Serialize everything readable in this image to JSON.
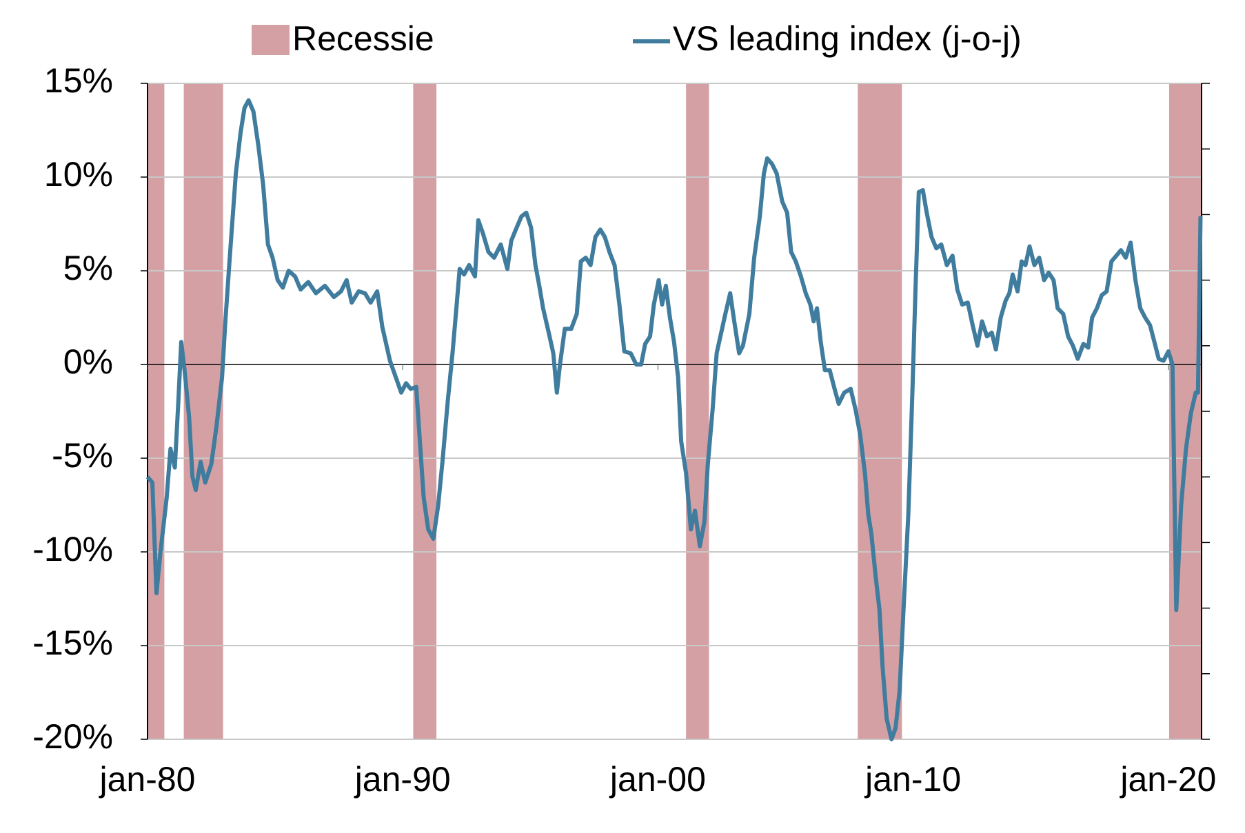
{
  "chart_data": {
    "type": "line",
    "bands": {
      "name": "Recessie",
      "color": "#d4a0a4",
      "ranges": [
        [
          1980.0,
          1980.66
        ],
        [
          1981.42,
          1982.96
        ],
        [
          1990.41,
          1991.32
        ],
        [
          2001.1,
          2002.0
        ],
        [
          2007.83,
          2009.56
        ],
        [
          2020.03,
          2021.3
        ]
      ]
    },
    "x": [
      1980.0,
      1980.19,
      1980.35,
      1980.5,
      1980.75,
      1980.9,
      1981.07,
      1981.2,
      1981.32,
      1981.45,
      1981.63,
      1981.76,
      1981.89,
      1982.08,
      1982.26,
      1982.5,
      1982.7,
      1982.92,
      1983.05,
      1983.2,
      1983.46,
      1983.65,
      1983.8,
      1983.96,
      1984.15,
      1984.34,
      1984.53,
      1984.72,
      1984.9,
      1985.1,
      1985.3,
      1985.53,
      1985.78,
      1986.0,
      1986.3,
      1986.6,
      1986.95,
      1987.3,
      1987.58,
      1987.8,
      1988.0,
      1988.27,
      1988.52,
      1988.74,
      1989.0,
      1989.2,
      1989.5,
      1989.68,
      1989.94,
      1990.13,
      1990.31,
      1990.53,
      1990.66,
      1990.82,
      1991.0,
      1991.2,
      1991.39,
      1991.57,
      1991.76,
      1991.95,
      1992.1,
      1992.23,
      1992.4,
      1992.6,
      1992.83,
      1992.96,
      1993.14,
      1993.36,
      1993.58,
      1993.84,
      1994.1,
      1994.25,
      1994.43,
      1994.65,
      1994.84,
      1995.03,
      1995.2,
      1995.35,
      1995.5,
      1995.72,
      1995.9,
      1996.04,
      1996.16,
      1996.35,
      1996.6,
      1996.82,
      1996.98,
      1997.17,
      1997.36,
      1997.55,
      1997.74,
      1997.92,
      1998.1,
      1998.3,
      1998.49,
      1998.68,
      1998.93,
      1999.15,
      1999.34,
      1999.5,
      1999.69,
      1999.84,
      2000.03,
      2000.16,
      2000.31,
      2000.47,
      2000.63,
      2000.79,
      2000.91,
      2001.1,
      2001.29,
      2001.45,
      2001.64,
      2001.82,
      2001.95,
      2002.14,
      2002.3,
      2002.48,
      2002.64,
      2002.83,
      2002.99,
      2003.18,
      2003.33,
      2003.58,
      2003.77,
      2003.99,
      2004.15,
      2004.28,
      2004.47,
      2004.65,
      2004.87,
      2005.06,
      2005.22,
      2005.4,
      2005.6,
      2005.79,
      2005.97,
      2006.1,
      2006.23,
      2006.38,
      2006.54,
      2006.73,
      2006.92,
      2007.08,
      2007.3,
      2007.55,
      2007.74,
      2007.92,
      2008.11,
      2008.24,
      2008.36,
      2008.52,
      2008.68,
      2008.8,
      2008.96,
      2009.15,
      2009.31,
      2009.47,
      2009.62,
      2009.81,
      2009.97,
      2010.09,
      2010.22,
      2010.38,
      2010.53,
      2010.72,
      2010.91,
      2011.1,
      2011.32,
      2011.54,
      2011.73,
      2011.92,
      2012.14,
      2012.33,
      2012.52,
      2012.7,
      2012.89,
      2013.08,
      2013.24,
      2013.43,
      2013.62,
      2013.77,
      2013.9,
      2014.09,
      2014.25,
      2014.4,
      2014.56,
      2014.75,
      2014.94,
      2015.13,
      2015.31,
      2015.5,
      2015.66,
      2015.88,
      2016.07,
      2016.26,
      2016.45,
      2016.67,
      2016.86,
      2017.01,
      2017.2,
      2017.39,
      2017.58,
      2017.77,
      2017.96,
      2018.14,
      2018.33,
      2018.52,
      2018.71,
      2018.9,
      2019.09,
      2019.28,
      2019.47,
      2019.62,
      2019.81,
      2020.0,
      2020.16,
      2020.31,
      2020.5,
      2020.69,
      2020.88,
      2021.07,
      2021.16,
      2021.26
    ],
    "series": [
      {
        "name": "VS leading index (j-o-j)",
        "color": "#3f7c9e",
        "values": [
          -6.0,
          -6.3,
          -12.2,
          -10.1,
          -7.1,
          -4.5,
          -5.5,
          -2.2,
          1.2,
          -0.3,
          -2.8,
          -6.0,
          -6.7,
          -5.2,
          -6.3,
          -5.3,
          -3.3,
          -0.7,
          2.3,
          5.3,
          10.2,
          12.4,
          13.7,
          14.1,
          13.5,
          11.7,
          9.6,
          6.4,
          5.7,
          4.5,
          4.1,
          5.0,
          4.7,
          4.0,
          4.4,
          3.8,
          4.2,
          3.6,
          3.9,
          4.5,
          3.3,
          3.9,
          3.8,
          3.3,
          3.9,
          2.0,
          0.2,
          -0.5,
          -1.5,
          -1.0,
          -1.3,
          -1.2,
          -3.9,
          -7.1,
          -8.8,
          -9.3,
          -7.5,
          -5.0,
          -2.0,
          0.6,
          3.0,
          5.1,
          4.8,
          5.3,
          4.7,
          7.7,
          7.0,
          6.0,
          5.7,
          6.4,
          5.1,
          6.6,
          7.2,
          7.9,
          8.1,
          7.3,
          5.3,
          4.2,
          3.0,
          1.7,
          0.6,
          -1.5,
          0.0,
          1.9,
          1.9,
          2.7,
          5.5,
          5.7,
          5.3,
          6.8,
          7.2,
          6.8,
          6.0,
          5.3,
          3.2,
          0.7,
          0.6,
          0.0,
          0.0,
          1.1,
          1.5,
          3.2,
          4.5,
          3.2,
          4.2,
          2.5,
          1.2,
          -0.7,
          -4.1,
          -5.8,
          -8.8,
          -7.8,
          -9.7,
          -8.4,
          -5.4,
          -2.4,
          0.6,
          1.7,
          2.7,
          3.8,
          2.3,
          0.6,
          1.0,
          2.7,
          5.7,
          7.9,
          10.2,
          11.0,
          10.7,
          10.2,
          8.7,
          8.1,
          6.0,
          5.5,
          4.7,
          3.8,
          3.2,
          2.3,
          3.0,
          1.2,
          -0.3,
          -0.3,
          -1.3,
          -2.1,
          -1.5,
          -1.3,
          -2.4,
          -3.7,
          -5.8,
          -8.0,
          -9.0,
          -11.2,
          -13.1,
          -16.1,
          -18.9,
          -20.0,
          -19.4,
          -17.4,
          -13.1,
          -8.0,
          -1.5,
          4.0,
          9.2,
          9.3,
          8.1,
          6.8,
          6.2,
          6.4,
          5.3,
          5.8,
          4.0,
          3.2,
          3.3,
          2.1,
          1.0,
          2.3,
          1.5,
          1.7,
          0.8,
          2.5,
          3.4,
          3.8,
          4.8,
          3.9,
          5.5,
          5.3,
          6.3,
          5.3,
          5.7,
          4.5,
          4.9,
          4.5,
          3.0,
          2.7,
          1.5,
          1.0,
          0.3,
          1.1,
          0.9,
          2.5,
          3.0,
          3.7,
          3.9,
          5.5,
          5.8,
          6.1,
          5.7,
          6.5,
          4.5,
          3.0,
          2.5,
          2.1,
          1.1,
          0.3,
          0.2,
          0.7,
          0.0,
          -13.1,
          -7.5,
          -4.5,
          -2.6,
          -1.5,
          -1.5,
          7.9
        ]
      }
    ],
    "xlim": [
      1980,
      2021.3
    ],
    "xticks": [
      {
        "value": 1980,
        "label": "jan-80"
      },
      {
        "value": 1990,
        "label": "jan-90"
      },
      {
        "value": 2000,
        "label": "jan-00"
      },
      {
        "value": 2010,
        "label": "jan-10"
      },
      {
        "value": 2020,
        "label": "jan-20"
      }
    ],
    "ylim": [
      -20,
      15
    ],
    "yticks": [
      {
        "value": -20,
        "label": "-20%"
      },
      {
        "value": -15,
        "label": "-15%"
      },
      {
        "value": -10,
        "label": "-10%"
      },
      {
        "value": -5,
        "label": "-5%"
      },
      {
        "value": 0,
        "label": "0%"
      },
      {
        "value": 5,
        "label": "5%"
      },
      {
        "value": 10,
        "label": "10%"
      },
      {
        "value": 15,
        "label": "15%"
      }
    ],
    "grid": true
  }
}
